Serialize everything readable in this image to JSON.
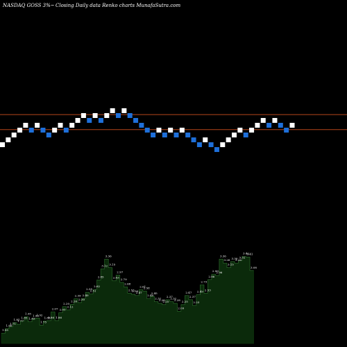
{
  "header": {
    "symbol": "NASDAQ GOSS 3%~",
    "description": "Closing Daily data  Renko  charts MunafaSutra.com"
  },
  "colors": {
    "background": "#000000",
    "up_brick": "#ffffff",
    "down_brick": "#1e6fd9",
    "guide_line": "#b5451b",
    "volume_fill": "#0b2a0b",
    "volume_stroke": "#ffffff"
  },
  "chart_data": [
    {
      "type": "renko",
      "title": "NASDAQ GOSS 3%~ Closing Daily data Renko charts MunafaSutra.com",
      "bricks": [
        {
          "level": 1,
          "dir": "up"
        },
        {
          "level": 2,
          "dir": "up"
        },
        {
          "level": 3,
          "dir": "up"
        },
        {
          "level": 4,
          "dir": "up"
        },
        {
          "level": 5,
          "dir": "up"
        },
        {
          "level": 4,
          "dir": "down"
        },
        {
          "level": 5,
          "dir": "up"
        },
        {
          "level": 4,
          "dir": "down"
        },
        {
          "level": 3,
          "dir": "down"
        },
        {
          "level": 4,
          "dir": "up"
        },
        {
          "level": 5,
          "dir": "up"
        },
        {
          "level": 4,
          "dir": "down"
        },
        {
          "level": 5,
          "dir": "up"
        },
        {
          "level": 6,
          "dir": "up"
        },
        {
          "level": 7,
          "dir": "up"
        },
        {
          "level": 6,
          "dir": "down"
        },
        {
          "level": 7,
          "dir": "up"
        },
        {
          "level": 6,
          "dir": "down"
        },
        {
          "level": 7,
          "dir": "up"
        },
        {
          "level": 8,
          "dir": "up"
        },
        {
          "level": 7,
          "dir": "down"
        },
        {
          "level": 8,
          "dir": "up"
        },
        {
          "level": 7,
          "dir": "down"
        },
        {
          "level": 6,
          "dir": "down"
        },
        {
          "level": 5,
          "dir": "down"
        },
        {
          "level": 4,
          "dir": "down"
        },
        {
          "level": 3,
          "dir": "down"
        },
        {
          "level": 4,
          "dir": "up"
        },
        {
          "level": 3,
          "dir": "down"
        },
        {
          "level": 4,
          "dir": "up"
        },
        {
          "level": 3,
          "dir": "down"
        },
        {
          "level": 4,
          "dir": "up"
        },
        {
          "level": 3,
          "dir": "down"
        },
        {
          "level": 2,
          "dir": "down"
        },
        {
          "level": 1,
          "dir": "down"
        },
        {
          "level": 2,
          "dir": "up"
        },
        {
          "level": 1,
          "dir": "down"
        },
        {
          "level": 0,
          "dir": "down"
        },
        {
          "level": 1,
          "dir": "up"
        },
        {
          "level": 2,
          "dir": "up"
        },
        {
          "level": 3,
          "dir": "up"
        },
        {
          "level": 4,
          "dir": "up"
        },
        {
          "level": 3,
          "dir": "down"
        },
        {
          "level": 4,
          "dir": "up"
        },
        {
          "level": 5,
          "dir": "up"
        },
        {
          "level": 6,
          "dir": "up"
        },
        {
          "level": 5,
          "dir": "down"
        },
        {
          "level": 6,
          "dir": "up"
        },
        {
          "level": 5,
          "dir": "down"
        },
        {
          "level": 4,
          "dir": "down"
        },
        {
          "level": 5,
          "dir": "up"
        }
      ],
      "guide_levels": [
        7.2,
        4.1
      ]
    },
    {
      "type": "area",
      "values": [
        1.55,
        1.66,
        1.71,
        1.81,
        1.77,
        1.85,
        1.95,
        1.83,
        1.9,
        1.92,
        1.75,
        1.85,
        1.86,
        2.07,
        1.86,
        2.05,
        2.2,
        2.12,
        2.26,
        2.39,
        2.3,
        2.4,
        2.55,
        2.51,
        2.62,
        2.85,
        3.12,
        3.36,
        3.15,
        2.83,
        2.97,
        2.79,
        2.68,
        2.53,
        2.5,
        2.47,
        2.61,
        2.58,
        2.4,
        2.45,
        2.32,
        2.28,
        2.25,
        2.37,
        2.32,
        2.28,
        2.09,
        2.25,
        2.47,
        2.37,
        2.23,
        2.49,
        2.73,
        2.53,
        2.86,
        2.99,
        2.96,
        3.36,
        3.26,
        3.15,
        3.3,
        3.26,
        3.32,
        3.42,
        3.41,
        3.08
      ],
      "value_labels": [
        "1.55",
        "1.66",
        "1.71",
        "1.81",
        "1.77",
        "1.85",
        "1.95",
        "1.83",
        "1.90",
        "1.92",
        "1.75",
        "1.85",
        "1.86",
        "2.07",
        "1.86",
        "2.05",
        "2.20",
        "2.12",
        "2.26",
        "2.39",
        "2.30",
        "2.40",
        "2.55",
        "2.51",
        "2.62",
        "2.85",
        "3.12",
        "3.36",
        "3.15",
        "2.83",
        "2.97",
        "2.79",
        "2.68",
        "2.53",
        "2.50",
        "2.47",
        "2.61",
        "2.58",
        "2.40",
        "2.45",
        "2.32",
        "2.28",
        "2.25",
        "2.37",
        "2.32",
        "2.28",
        "2.09",
        "2.25",
        "2.47",
        "2.37",
        "2.23",
        "2.49",
        "2.73",
        "2.53",
        "2.86",
        "2.99",
        "2.96",
        "3.36",
        "3.26",
        "3.15",
        "3.30",
        "3.26",
        "3.32",
        "3.42",
        "3.41",
        "3.08"
      ]
    }
  ]
}
